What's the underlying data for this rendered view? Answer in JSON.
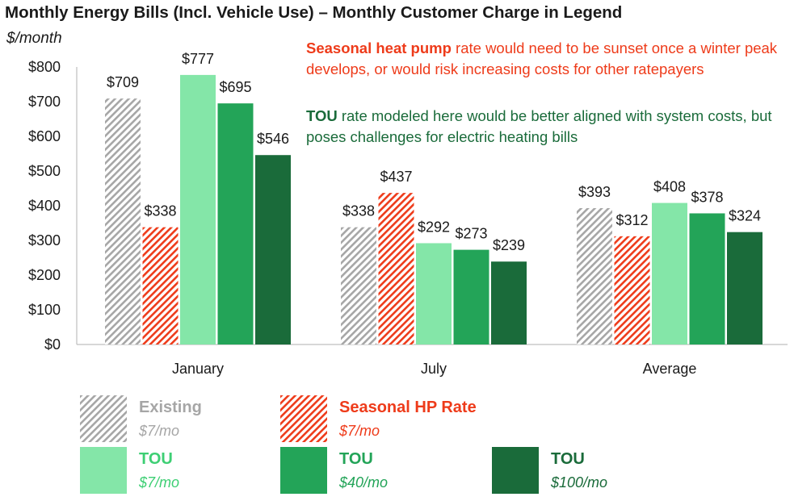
{
  "title": "Monthly Energy Bills (Incl. Vehicle Use) – Monthly Customer Charge in Legend",
  "y_unit": "$/month",
  "annotations": [
    {
      "bold": "Seasonal heat pump",
      "text": " rate would need to be sunset once a winter peak develops, or would risk increasing costs for other ratepayers",
      "color": "#ee3b1a"
    },
    {
      "bold": "TOU",
      "text": " rate modeled here would be better aligned with system costs, but poses challenges for electric heating bills",
      "color": "#1a6b3a"
    }
  ],
  "chart_data": {
    "type": "bar",
    "categories": [
      "January",
      "July",
      "Average"
    ],
    "series": [
      {
        "name": "Existing",
        "charge": "$7/mo",
        "values": [
          709,
          338,
          393
        ],
        "labels": [
          "$709",
          "$338",
          "$393"
        ],
        "color": "#a6a6a6",
        "pattern": "hatch",
        "label_color": "#a6a6a6"
      },
      {
        "name": "Seasonal HP Rate",
        "charge": "$7/mo",
        "values": [
          338,
          437,
          312
        ],
        "labels": [
          "$338",
          "$437",
          "$312"
        ],
        "color": "#ee3b1a",
        "pattern": "hatch",
        "label_color": "#ee3b1a"
      },
      {
        "name": "TOU",
        "charge": "$7/mo",
        "values": [
          777,
          292,
          408
        ],
        "labels": [
          "$777",
          "$292",
          "$408"
        ],
        "color": "#84e6a8",
        "pattern": "solid",
        "label_color": "#3ecf74"
      },
      {
        "name": "TOU",
        "charge": "$40/mo",
        "values": [
          695,
          273,
          378
        ],
        "labels": [
          "$695",
          "$273",
          "$378"
        ],
        "color": "#23a458",
        "pattern": "solid",
        "label_color": "#23a458"
      },
      {
        "name": "TOU",
        "charge": "$100/mo",
        "values": [
          546,
          239,
          324
        ],
        "labels": [
          "$546",
          "$239",
          "$324"
        ],
        "color": "#1a6b3a",
        "pattern": "solid",
        "label_color": "#1a6b3a"
      }
    ],
    "yticks": [
      0,
      100,
      200,
      300,
      400,
      500,
      600,
      700,
      800
    ],
    "ytick_labels": [
      "$0",
      "$100",
      "$200",
      "$300",
      "$400",
      "$500",
      "$600",
      "$700",
      "$800"
    ],
    "ylim": [
      0,
      800
    ],
    "grid": false,
    "legend_position": "bottom"
  }
}
